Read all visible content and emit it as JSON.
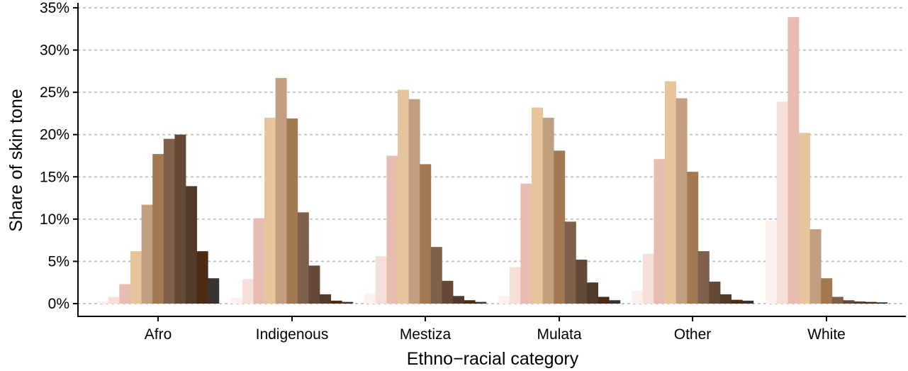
{
  "chart_data": {
    "type": "bar",
    "title": "",
    "xlabel": "Ethno−racial category",
    "ylabel": "Share of skin tone",
    "ylim": [
      0,
      35
    ],
    "yticks": [
      "0%",
      "5%",
      "10%",
      "15%",
      "20%",
      "25%",
      "30%",
      "35%"
    ],
    "y_tick_values": [
      0,
      5,
      10,
      15,
      20,
      25,
      30,
      35
    ],
    "grid": "horizontal dotted",
    "legend": "none",
    "categories": [
      "Afro",
      "Indigenous",
      "Mestiza",
      "Mulata",
      "Other",
      "White"
    ],
    "series": [
      {
        "color": "#fdf1f0",
        "values": [
          0.3,
          0.7,
          1.2,
          0.9,
          1.5,
          9.8
        ]
      },
      {
        "color": "#f6dfd9",
        "values": [
          0.8,
          2.9,
          5.6,
          4.3,
          5.9,
          23.9
        ]
      },
      {
        "color": "#e9bcb2",
        "values": [
          2.3,
          10.1,
          17.5,
          14.2,
          17.1,
          33.9
        ]
      },
      {
        "color": "#e6c49c",
        "values": [
          6.2,
          22.0,
          25.3,
          23.2,
          26.3,
          20.2
        ]
      },
      {
        "color": "#c29f7e",
        "values": [
          11.7,
          26.7,
          24.2,
          22.0,
          24.3,
          8.8
        ]
      },
      {
        "color": "#a37952",
        "values": [
          17.7,
          21.9,
          16.5,
          18.1,
          15.6,
          3.0
        ]
      },
      {
        "color": "#7f604a",
        "values": [
          19.5,
          10.8,
          6.7,
          9.7,
          6.2,
          0.8
        ]
      },
      {
        "color": "#634936",
        "values": [
          20.0,
          4.5,
          2.7,
          5.2,
          2.6,
          0.4
        ]
      },
      {
        "color": "#503a2c",
        "values": [
          13.9,
          1.1,
          0.9,
          2.5,
          1.1,
          0.25
        ]
      },
      {
        "color": "#4b2b13",
        "values": [
          6.2,
          0.35,
          0.4,
          0.8,
          0.45,
          0.2
        ]
      },
      {
        "color": "#3a3430",
        "values": [
          3.0,
          0.2,
          0.2,
          0.4,
          0.35,
          0.15
        ]
      }
    ]
  }
}
